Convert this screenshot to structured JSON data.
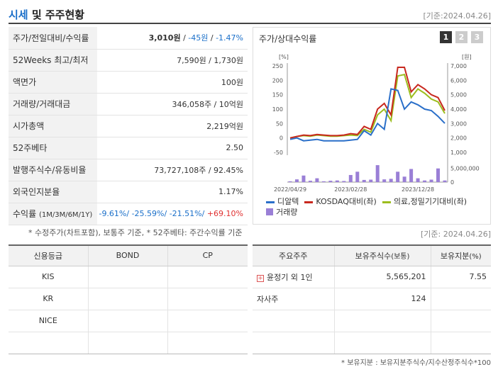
{
  "header": {
    "title_main": "시세",
    "title_rest": " 및 주주현황",
    "date": "[기준:2024.04.26]"
  },
  "quote": {
    "rows": [
      {
        "label": "주가/전일대비/수익률",
        "price": "3,010원",
        "sep1": " / ",
        "change": "-45원",
        "sep2": " / ",
        "rate": "-1.47%"
      },
      {
        "label": "52Weeks 최고/최저",
        "value": "7,590원 / 1,730원"
      },
      {
        "label": "액면가",
        "value": "100원"
      },
      {
        "label": "거래량/거래대금",
        "value": "346,058주 / 10억원"
      },
      {
        "label": "시가총액",
        "value": "2,219억원"
      },
      {
        "label": "52주베타",
        "value": "2.50"
      },
      {
        "label": "발행주식수/유동비율",
        "value": "73,727,108주 / 92.45%"
      },
      {
        "label": "외국인지분율",
        "value": "1.17%"
      }
    ],
    "returns": {
      "label": "수익률",
      "label_small": "(1M/3M/6M/1Y)",
      "r1": "-9.61%/",
      "r2": " -25.59%/",
      "r3": " -21.51%/",
      "r4": " +69.10%"
    },
    "note": "* 수정주가(차트포함), 보통주 기준, * 52주베타: 주간수익률 기준"
  },
  "chart": {
    "title": "주가/상대수익률",
    "pages": [
      "1",
      "2",
      "3"
    ],
    "active_page": "1",
    "left_unit": "[%]",
    "right_unit": "[원]",
    "left_ticks": [
      "250",
      "200",
      "150",
      "100",
      "50",
      "0",
      "-50"
    ],
    "right_ticks": [
      "7,000",
      "6,000",
      "5,000",
      "4,000",
      "3,000",
      "2,000",
      "1,000"
    ],
    "volume_tick": "5,000,000",
    "volume_zero": "0",
    "x_ticks": [
      "2022/04/29",
      "2023/02/28",
      "2023/12/28"
    ],
    "legend": [
      {
        "name": "디알텍",
        "color": "#2a6fc9",
        "kind": "line"
      },
      {
        "name": "KOSDAQ대비(좌)",
        "color": "#c8281e",
        "kind": "line"
      },
      {
        "name": "의료,정밀기기대비(좌)",
        "color": "#9cbd1e",
        "kind": "line"
      },
      {
        "name": "거래량",
        "color": "#9a7fd6",
        "kind": "bar"
      }
    ]
  },
  "chart_data": {
    "type": "line",
    "title": "주가/상대수익률",
    "x": [
      "2022/04/29",
      "2022/06",
      "2022/07",
      "2022/08",
      "2022/09",
      "2022/10",
      "2022/11",
      "2022/12",
      "2023/01",
      "2023/02/28",
      "2023/03",
      "2023/04",
      "2023/05",
      "2023/06",
      "2023/07",
      "2023/08",
      "2023/09",
      "2023/10",
      "2023/11",
      "2023/12/28",
      "2024/01",
      "2024/02",
      "2024/03",
      "2024/04"
    ],
    "series": [
      {
        "name": "디알텍",
        "axis": "right",
        "unit": "원",
        "values": [
          1900,
          2000,
          1800,
          1850,
          1900,
          1800,
          1800,
          1800,
          1800,
          1850,
          1900,
          2500,
          2200,
          3000,
          2600,
          5400,
          5300,
          4000,
          4500,
          4300,
          4000,
          3900,
          3500,
          3010
        ]
      },
      {
        "name": "KOSDAQ대비(좌)",
        "axis": "left",
        "unit": "%",
        "values": [
          0,
          5,
          10,
          8,
          12,
          10,
          8,
          8,
          10,
          15,
          12,
          40,
          30,
          100,
          120,
          80,
          245,
          245,
          160,
          185,
          170,
          150,
          140,
          95
        ]
      },
      {
        "name": "의료,정밀기기대비(좌)",
        "axis": "left",
        "unit": "%",
        "values": [
          0,
          5,
          8,
          6,
          10,
          8,
          6,
          6,
          8,
          10,
          8,
          30,
          20,
          80,
          100,
          60,
          215,
          220,
          140,
          170,
          155,
          135,
          125,
          85
        ]
      },
      {
        "name": "거래량",
        "axis": "volume",
        "unit": "주",
        "values": [
          300000,
          1000000,
          2400000,
          500000,
          1400000,
          300000,
          500000,
          600000,
          400000,
          2600000,
          3800000,
          800000,
          900000,
          6200000,
          1000000,
          1200000,
          3800000,
          2000000,
          4800000,
          1400000,
          600000,
          900000,
          5000000,
          600000
        ]
      }
    ],
    "ylim_left": [
      -50,
      250
    ],
    "ylim_right": [
      1000,
      7000
    ],
    "grid": false,
    "legend": "bottom"
  },
  "chart_date": "[기준: 2024.04.26]",
  "credit": {
    "headers": [
      "신용등급",
      "BOND",
      "CP"
    ],
    "rows": [
      [
        "KIS",
        "",
        ""
      ],
      [
        "KR",
        "",
        ""
      ],
      [
        "NICE",
        "",
        ""
      ],
      [
        "",
        "",
        ""
      ]
    ]
  },
  "holders": {
    "headers": [
      "주요주주",
      "보유주식수",
      "(보통)",
      "보유지분",
      "(%)"
    ],
    "rows": [
      {
        "name": "윤정기 외 1인",
        "shares": "5,565,201",
        "pct": "7.55",
        "expand": "+"
      },
      {
        "name": "자사주",
        "shares": "124",
        "pct": ""
      },
      {
        "name": "",
        "shares": "",
        "pct": ""
      },
      {
        "name": "",
        "shares": "",
        "pct": ""
      }
    ],
    "note": "* 보유지분 : 보유지분주식수/지수산정주식수*100"
  }
}
